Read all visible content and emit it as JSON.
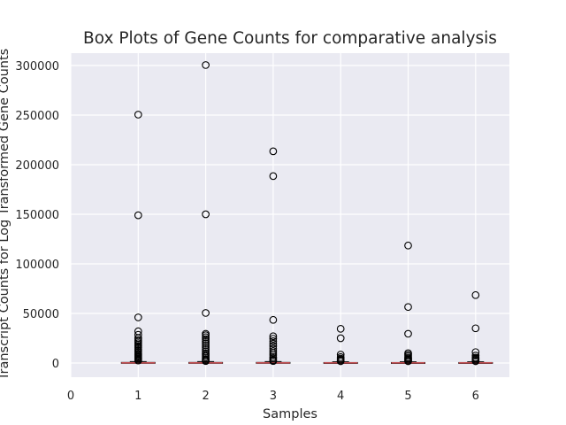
{
  "chart_data": {
    "type": "box",
    "title": "Box Plots of Gene Counts for comparative analysis",
    "xlabel": "Samples",
    "ylabel": "Transcript Counts for Log Transformed Gene Counts",
    "xlim": [
      0,
      6.5
    ],
    "ylim": [
      -14000,
      315000
    ],
    "x_ticks": [
      0,
      1,
      2,
      3,
      4,
      5,
      6
    ],
    "y_ticks": [
      0,
      50000,
      100000,
      150000,
      200000,
      250000,
      300000
    ],
    "grid": true,
    "style": "seaborn-darkgrid",
    "colors": {
      "background": "#eaeaf2",
      "grid": "#ffffff",
      "median": "#c44e52",
      "box": "#000000",
      "outlier_edge": "#000000"
    },
    "series": [
      {
        "x": 1,
        "box": {
          "q1": 0,
          "median": 200,
          "q3": 600,
          "whisker_low": 0,
          "whisker_high": 1400
        },
        "outliers": [
          250500,
          149000,
          46000,
          32000,
          28500,
          25000,
          23000,
          21500,
          20000,
          18500,
          17000,
          15500,
          14000,
          12500,
          11000,
          9500,
          8500,
          7500,
          6500,
          5500,
          4500,
          3500,
          2500
        ]
      },
      {
        "x": 2,
        "box": {
          "q1": 0,
          "median": 200,
          "q3": 600,
          "whisker_low": 0,
          "whisker_high": 1400
        },
        "outliers": [
          300500,
          150000,
          50500,
          29500,
          28000,
          26000,
          24000,
          22000,
          20000,
          18000,
          16000,
          14000,
          12000,
          10000,
          8500,
          7000,
          5500,
          4000,
          3000,
          2000
        ]
      },
      {
        "x": 3,
        "box": {
          "q1": 0,
          "median": 200,
          "q3": 600,
          "whisker_low": 0,
          "whisker_high": 1400
        },
        "outliers": [
          213500,
          188500,
          43500,
          27000,
          24500,
          22000,
          19500,
          17000,
          14500,
          12000,
          10000,
          8000,
          6000,
          4500,
          3000,
          2000
        ]
      },
      {
        "x": 4,
        "box": {
          "q1": 0,
          "median": 150,
          "q3": 500,
          "whisker_low": 0,
          "whisker_high": 1200
        },
        "outliers": [
          34500,
          25000,
          8500,
          6000,
          4500,
          3500,
          2500,
          1800
        ]
      },
      {
        "x": 5,
        "box": {
          "q1": 0,
          "median": 150,
          "q3": 500,
          "whisker_low": 0,
          "whisker_high": 1200
        },
        "outliers": [
          118500,
          56500,
          29500,
          10000,
          8500,
          7000,
          5500,
          4500,
          3500,
          2500,
          1800
        ]
      },
      {
        "x": 6,
        "box": {
          "q1": 0,
          "median": 150,
          "q3": 500,
          "whisker_low": 0,
          "whisker_high": 1200
        },
        "outliers": [
          68500,
          35000,
          11000,
          7500,
          5500,
          4500,
          3500,
          2500,
          1800
        ]
      }
    ]
  }
}
